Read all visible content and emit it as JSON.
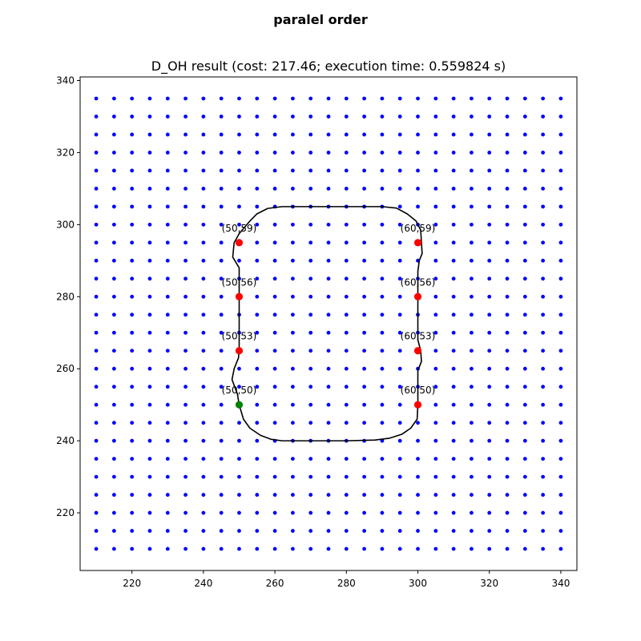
{
  "figure": {
    "suptitle": "paralel order"
  },
  "chart_data": {
    "type": "scatter",
    "title": "D_OH result (cost: 217.46; execution time: 0.559824 s)",
    "xlabel": "",
    "ylabel": "",
    "xlim": [
      205.5,
      344.5
    ],
    "ylim": [
      204,
      341
    ],
    "xticks": [
      220,
      240,
      260,
      280,
      300,
      320,
      340
    ],
    "yticks": [
      220,
      240,
      260,
      280,
      300,
      320,
      340
    ],
    "grid": false,
    "legend": "none",
    "grid_points": {
      "x_start": 210,
      "x_end": 340,
      "y_start": 210,
      "y_end": 335,
      "step": 5,
      "color": "#0000ff"
    },
    "path": {
      "color": "#000000",
      "points": [
        [
          250,
          250
        ],
        [
          249.5,
          253
        ],
        [
          248,
          257
        ],
        [
          248.6,
          260
        ],
        [
          249.8,
          263
        ],
        [
          250,
          265
        ],
        [
          250,
          270
        ],
        [
          250,
          275
        ],
        [
          250,
          280
        ],
        [
          250,
          285
        ],
        [
          250,
          288
        ],
        [
          248.2,
          291
        ],
        [
          248.6,
          295
        ],
        [
          250,
          297.5
        ],
        [
          253,
          301
        ],
        [
          255,
          303
        ],
        [
          258,
          304.5
        ],
        [
          262,
          305
        ],
        [
          270,
          305
        ],
        [
          280,
          305
        ],
        [
          290,
          305
        ],
        [
          294,
          304.6
        ],
        [
          297,
          303
        ],
        [
          299.5,
          301
        ],
        [
          300.8,
          298.5
        ],
        [
          301,
          295
        ],
        [
          301.2,
          292
        ],
        [
          300.4,
          290
        ],
        [
          300,
          287
        ],
        [
          300,
          280
        ],
        [
          300,
          273
        ],
        [
          300,
          268
        ],
        [
          300.8,
          265
        ],
        [
          301,
          262
        ],
        [
          300,
          259.5
        ],
        [
          300,
          255
        ],
        [
          300,
          250
        ],
        [
          299.8,
          246
        ],
        [
          298,
          243.5
        ],
        [
          295.5,
          241.8
        ],
        [
          292,
          240.7
        ],
        [
          288,
          240.2
        ],
        [
          280,
          240
        ],
        [
          270,
          240
        ],
        [
          262,
          240
        ],
        [
          259,
          240.4
        ],
        [
          256,
          241.5
        ],
        [
          253,
          243.5
        ],
        [
          251.2,
          246
        ],
        [
          250,
          250
        ]
      ]
    },
    "marked_points": [
      {
        "label": "(50,59)",
        "x": 250,
        "y": 295,
        "color": "#ff0000"
      },
      {
        "label": "(50,56)",
        "x": 250,
        "y": 280,
        "color": "#ff0000"
      },
      {
        "label": "(50,53)",
        "x": 250,
        "y": 265,
        "color": "#ff0000"
      },
      {
        "label": "(50,50)",
        "x": 250,
        "y": 250,
        "color": "#008000"
      },
      {
        "label": "(60,59)",
        "x": 300,
        "y": 295,
        "color": "#ff0000"
      },
      {
        "label": "(60,56)",
        "x": 300,
        "y": 280,
        "color": "#ff0000"
      },
      {
        "label": "(60,53)",
        "x": 300,
        "y": 265,
        "color": "#ff0000"
      },
      {
        "label": "(60,50)",
        "x": 300,
        "y": 250,
        "color": "#ff0000"
      }
    ]
  }
}
